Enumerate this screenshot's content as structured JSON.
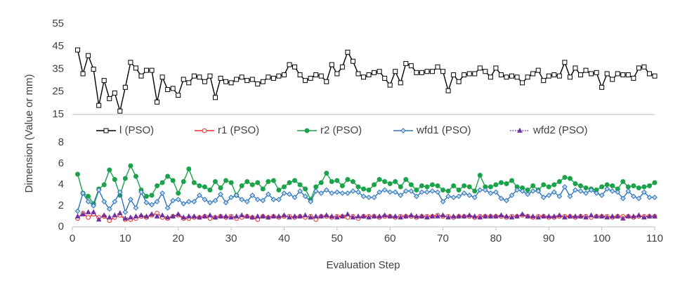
{
  "chart_data": [
    {
      "type": "line",
      "ylabel": "Dimension (Value or mm)",
      "xlim": [
        0,
        110
      ],
      "ylim": [
        15,
        55
      ],
      "yticks": [
        15,
        25,
        35,
        45,
        55
      ],
      "grid": false,
      "x": [
        1,
        2,
        3,
        4,
        5,
        6,
        7,
        8,
        9,
        10,
        11,
        12,
        13,
        14,
        15,
        16,
        17,
        18,
        19,
        20,
        21,
        22,
        23,
        24,
        25,
        26,
        27,
        28,
        29,
        30,
        31,
        32,
        33,
        34,
        35,
        36,
        37,
        38,
        39,
        40,
        41,
        42,
        43,
        44,
        45,
        46,
        47,
        48,
        49,
        50,
        51,
        52,
        53,
        54,
        55,
        56,
        57,
        58,
        59,
        60,
        61,
        62,
        63,
        64,
        65,
        66,
        67,
        68,
        69,
        70,
        71,
        72,
        73,
        74,
        75,
        76,
        77,
        78,
        79,
        80,
        81,
        82,
        83,
        84,
        85,
        86,
        87,
        88,
        89,
        90,
        91,
        92,
        93,
        94,
        95,
        96,
        97,
        98,
        99,
        100,
        101,
        102,
        103,
        104,
        105,
        106,
        107,
        108,
        109,
        110
      ],
      "series": [
        {
          "name": "l (PSO)",
          "color": "#000000",
          "marker": "square",
          "line_style": "solid",
          "values": [
            43.5,
            33,
            41,
            35,
            19,
            30,
            22,
            24.5,
            16.5,
            27,
            38,
            35.5,
            32,
            34.5,
            34.5,
            20.5,
            31.5,
            26,
            26.5,
            23.5,
            30.5,
            29,
            32,
            31.5,
            29.5,
            32,
            22.5,
            31,
            29.5,
            29,
            30.5,
            31.5,
            30,
            30.5,
            28.5,
            29.5,
            31.5,
            31,
            32,
            32.5,
            37,
            36,
            32.5,
            30,
            31,
            32.5,
            32,
            29.5,
            37,
            33,
            36,
            42.5,
            38.5,
            33,
            31.5,
            32.5,
            33.5,
            34,
            31,
            28,
            34,
            29,
            37.5,
            36.5,
            33.5,
            33.5,
            34,
            34,
            36,
            34,
            25.5,
            32.5,
            29.5,
            32.5,
            33,
            33,
            35.5,
            34,
            31.5,
            35.5,
            32.5,
            31.5,
            32,
            31.5,
            29,
            31.5,
            33,
            34.5,
            30,
            32,
            32.5,
            32,
            38,
            31.5,
            35.5,
            32.5,
            34.5,
            33,
            33.5,
            27,
            33,
            30.5,
            33,
            32.5,
            32.5,
            31,
            35.5,
            36,
            33,
            32
          ]
        }
      ]
    },
    {
      "type": "line",
      "xlabel": "Evaluation Step",
      "xlim": [
        0,
        110
      ],
      "xticks": [
        0,
        10,
        20,
        30,
        40,
        50,
        60,
        70,
        80,
        90,
        100,
        110
      ],
      "ylim": [
        0,
        8
      ],
      "yticks": [
        0,
        2,
        4,
        6,
        8
      ],
      "grid": false,
      "x": [
        1,
        2,
        3,
        4,
        5,
        6,
        7,
        8,
        9,
        10,
        11,
        12,
        13,
        14,
        15,
        16,
        17,
        18,
        19,
        20,
        21,
        22,
        23,
        24,
        25,
        26,
        27,
        28,
        29,
        30,
        31,
        32,
        33,
        34,
        35,
        36,
        37,
        38,
        39,
        40,
        41,
        42,
        43,
        44,
        45,
        46,
        47,
        48,
        49,
        50,
        51,
        52,
        53,
        54,
        55,
        56,
        57,
        58,
        59,
        60,
        61,
        62,
        63,
        64,
        65,
        66,
        67,
        68,
        69,
        70,
        71,
        72,
        73,
        74,
        75,
        76,
        77,
        78,
        79,
        80,
        81,
        82,
        83,
        84,
        85,
        86,
        87,
        88,
        89,
        90,
        91,
        92,
        93,
        94,
        95,
        96,
        97,
        98,
        99,
        100,
        101,
        102,
        103,
        104,
        105,
        106,
        107,
        108,
        109,
        110
      ],
      "series": [
        {
          "name": "r1 (PSO)",
          "color": "#e8302a",
          "marker": "open-circle",
          "line_style": "solid",
          "values": [
            0.8,
            1.3,
            0.9,
            1.2,
            0.9,
            1.0,
            0.6,
            0.9,
            1.1,
            0.7,
            0.7,
            0.8,
            1.0,
            0.9,
            1.1,
            1.3,
            0.9,
            0.8,
            1.0,
            1.1,
            0.8,
            0.8,
            0.9,
            0.9,
            1.0,
            0.8,
            0.9,
            1.0,
            0.9,
            1.0,
            0.8,
            0.9,
            1.0,
            0.9,
            0.7,
            1.0,
            0.9,
            1.0,
            0.9,
            1.0,
            1.0,
            0.9,
            1.0,
            0.9,
            1.0,
            0.7,
            1.0,
            1.0,
            0.9,
            1.0,
            1.0,
            0.9,
            1.0,
            0.8,
            1.0,
            1.0,
            1.0,
            0.9,
            1.0,
            1.0,
            0.9,
            1.0,
            1.0,
            1.0,
            0.9,
            1.0,
            1.0,
            1.0,
            1.1,
            1.0,
            1.0,
            0.9,
            1.0,
            1.0,
            1.0,
            0.9,
            1.0,
            1.0,
            1.0,
            1.0,
            1.0,
            0.9,
            1.0,
            1.0,
            1.1,
            1.0,
            0.9,
            1.0,
            1.0,
            0.9,
            0.9,
            1.0,
            1.0,
            1.0,
            0.9,
            1.0,
            1.0,
            0.9,
            1.0,
            1.0,
            1.0,
            0.9,
            1.0,
            1.0,
            1.0,
            0.9,
            1.0,
            1.0,
            1.0,
            1.0
          ]
        },
        {
          "name": "r2 (PSO)",
          "color": "#1aa34a",
          "marker": "circle",
          "line_style": "solid",
          "values": [
            5,
            3.2,
            2.9,
            2.2,
            3.6,
            4,
            5.4,
            4.5,
            3,
            4.6,
            5.8,
            4.8,
            3.5,
            2.9,
            3,
            3.9,
            4.2,
            4.8,
            4.4,
            3.2,
            4.3,
            5.5,
            4.2,
            3.9,
            3.8,
            3.5,
            4.3,
            3.7,
            4.4,
            4.2,
            3,
            3.9,
            4.3,
            4,
            4.2,
            3.6,
            4.3,
            4.4,
            3.5,
            3.8,
            4.2,
            4.4,
            4,
            3.6,
            2.6,
            3.8,
            4.2,
            5.1,
            4.3,
            4.4,
            3.9,
            4.5,
            4.3,
            3.8,
            3.6,
            3.5,
            4,
            4.5,
            4.3,
            4.1,
            4.3,
            3.8,
            4.5,
            4,
            3.5,
            3.9,
            3.8,
            4,
            3.9,
            3.5,
            3.4,
            3.9,
            3.5,
            3.9,
            3.8,
            3.4,
            4.9,
            3.8,
            3.8,
            4,
            4.2,
            4.1,
            4.4,
            3.8,
            3.7,
            3.5,
            3.9,
            3.5,
            4,
            3.8,
            4,
            4.3,
            4.7,
            4.6,
            4.1,
            3.9,
            3.7,
            3.6,
            3.5,
            3.8,
            4,
            3.9,
            3.6,
            4.3,
            3.8,
            3.9,
            3.7,
            3.8,
            3.9,
            4.2
          ]
        },
        {
          "name": "wfd1 (PSO)",
          "color": "#2e75b6",
          "marker": "diamond",
          "line_style": "solid",
          "values": [
            1.5,
            3.2,
            2.4,
            2,
            3.5,
            2.4,
            1.7,
            2.4,
            3.3,
            1.4,
            2.6,
            1.8,
            3.3,
            2.3,
            2.1,
            2.4,
            3.2,
            1.8,
            2.5,
            2.6,
            2.2,
            2.4,
            2.4,
            3,
            2.6,
            2.3,
            2.5,
            3.1,
            2.3,
            2.8,
            3,
            2.6,
            2.4,
            3,
            2.6,
            2.5,
            3.1,
            2.6,
            2.6,
            3.2,
            3.1,
            2.8,
            3.4,
            2.9,
            2.4,
            3.4,
            3.2,
            3.5,
            3.2,
            3.3,
            3.2,
            3.2,
            3.4,
            3.3,
            2.9,
            2.8,
            2.8,
            3.3,
            3.5,
            3.3,
            3.3,
            3,
            3.4,
            3.4,
            2.9,
            3.3,
            3.3,
            3.4,
            3.3,
            2.4,
            2.9,
            2.8,
            2.9,
            3.2,
            3,
            2.8,
            3.5,
            3.5,
            3.2,
            3.3,
            2.7,
            2.5,
            3,
            3.5,
            3.4,
            3.1,
            3.4,
            3.4,
            2.8,
            3,
            3.3,
            2.9,
            3.8,
            2.9,
            3.5,
            3.4,
            3.2,
            3.5,
            3.2,
            3,
            3.6,
            3.4,
            3.3,
            2.7,
            3.4,
            2.9,
            2.7,
            3.3,
            2.8,
            2.8
          ]
        },
        {
          "name": "wfd2 (PSO)",
          "color": "#7030a0",
          "marker": "triangle",
          "line_style": "dotted",
          "values": [
            1.0,
            1.2,
            1.4,
            1.4,
            0.7,
            1.1,
            0.9,
            1.1,
            1.3,
            0.8,
            0.9,
            1.0,
            1.1,
            1.0,
            1.2,
            1.0,
            1.1,
            0.9,
            1.0,
            1.2,
            0.9,
            1.0,
            1.0,
            0.9,
            1.0,
            1.1,
            0.9,
            1.0,
            1.0,
            0.9,
            1.0,
            1.1,
            1.0,
            0.9,
            1.0,
            1.0,
            0.9,
            1.0,
            1.0,
            1.1,
            0.9,
            1.0,
            1.0,
            1.1,
            0.9,
            1.0,
            1.0,
            1.1,
            1.0,
            0.9,
            1.0,
            1.2,
            0.9,
            1.0,
            1.0,
            0.9,
            1.0,
            1.0,
            1.1,
            1.0,
            1.0,
            0.9,
            1.0,
            1.1,
            1.0,
            1.0,
            0.9,
            1.0,
            1.0,
            1.1,
            0.9,
            1.0,
            1.0,
            1.0,
            1.1,
            1.0,
            0.9,
            1.0,
            1.0,
            1.0,
            1.1,
            1.0,
            0.9,
            1.0,
            1.2,
            1.0,
            1.0,
            0.9,
            1.0,
            1.0,
            1.0,
            1.1,
            0.9,
            1.0,
            1.0,
            1.0,
            0.9,
            1.1,
            1.0,
            1.0,
            0.9,
            1.0,
            1.0,
            0.8,
            1.0,
            1.0,
            1.1,
            0.9,
            1.0,
            1.0
          ]
        }
      ]
    }
  ]
}
